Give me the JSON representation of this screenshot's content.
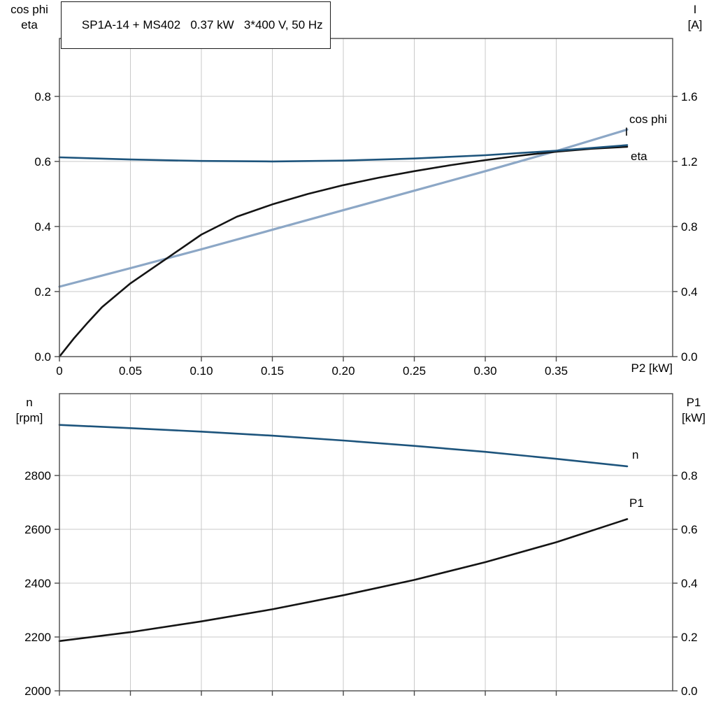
{
  "title_box": {
    "text": "SP1A-14 + MS402   0.37 kW   3*400 V, 50 Hz"
  },
  "colors": {
    "dark_blue": "#1d547c",
    "light_blue": "#8ca7c6",
    "black": "#141414",
    "grid": "#c9c9c9",
    "axis": "#4a4a4a"
  },
  "axis_corner_labels": {
    "top_chart_left": [
      "cos phi",
      "eta"
    ],
    "top_chart_right": [
      "I",
      "[A]"
    ],
    "bottom_chart_left": [
      "n",
      "[rpm]"
    ],
    "bottom_chart_right": [
      "P1",
      "[kW]"
    ]
  },
  "chart_data": [
    {
      "type": "line",
      "title": "SP1A-14 + MS402 0.37 kW 3*400 V, 50 Hz",
      "xlabel": "P2 [kW]",
      "ylabel_left": "cos phi / eta",
      "ylabel_right": "I [A]",
      "xlim": [
        0,
        0.432
      ],
      "x_ticks": [
        0,
        0.05,
        0.1,
        0.15,
        0.2,
        0.25,
        0.3,
        0.35
      ],
      "x_tick_labels": [
        "0",
        "0.05",
        "0.10",
        "0.15",
        "0.20",
        "0.25",
        "0.30",
        "0.35"
      ],
      "ylim_left": [
        0,
        0.978
      ],
      "y_ticks_left": [
        0,
        0.2,
        0.4,
        0.6,
        0.8
      ],
      "y_tick_labels_left": [
        "0.0",
        "0.2",
        "0.4",
        "0.6",
        "0.8"
      ],
      "ylim_right": [
        0,
        1.956
      ],
      "y_ticks_right": [
        0,
        0.4,
        0.8,
        1.2,
        1.6
      ],
      "y_tick_labels_right": [
        "0.0",
        "0.4",
        "0.8",
        "1.2",
        "1.6"
      ],
      "grid": true,
      "legend_position": "curve-end-labels",
      "series": [
        {
          "name": "cos phi",
          "axis": "left",
          "color_key": "light_blue",
          "x": [
            0,
            0.05,
            0.1,
            0.15,
            0.2,
            0.25,
            0.3,
            0.35,
            0.4
          ],
          "values": [
            0.215,
            0.272,
            0.33,
            0.39,
            0.45,
            0.51,
            0.57,
            0.632,
            0.698
          ]
        },
        {
          "name": "eta",
          "axis": "left",
          "color_key": "black",
          "x": [
            0,
            0.01,
            0.02,
            0.03,
            0.05,
            0.075,
            0.1,
            0.125,
            0.15,
            0.175,
            0.2,
            0.225,
            0.25,
            0.275,
            0.3,
            0.325,
            0.35,
            0.375,
            0.4
          ],
          "values": [
            0,
            0.055,
            0.105,
            0.152,
            0.225,
            0.3,
            0.375,
            0.43,
            0.468,
            0.5,
            0.527,
            0.55,
            0.57,
            0.588,
            0.604,
            0.618,
            0.63,
            0.639,
            0.645
          ]
        },
        {
          "name": "I",
          "axis": "right",
          "color_key": "dark_blue",
          "x": [
            0,
            0.05,
            0.1,
            0.15,
            0.2,
            0.25,
            0.3,
            0.35,
            0.4
          ],
          "values": [
            1.225,
            1.212,
            1.203,
            1.2,
            1.205,
            1.218,
            1.238,
            1.266,
            1.3
          ]
        }
      ]
    },
    {
      "type": "line",
      "title": "",
      "xlabel": "",
      "ylabel_left": "n [rpm]",
      "ylabel_right": "P1 [kW]",
      "xlim": [
        0,
        0.432
      ],
      "x_ticks": [
        0,
        0.05,
        0.1,
        0.15,
        0.2,
        0.25,
        0.3,
        0.35
      ],
      "x_tick_labels": [],
      "ylim_left": [
        2000,
        3104
      ],
      "y_ticks_left": [
        2000,
        2200,
        2400,
        2600,
        2800
      ],
      "y_tick_labels_left": [
        "2000",
        "2200",
        "2400",
        "2600",
        "2800"
      ],
      "ylim_right": [
        0,
        1.104
      ],
      "y_ticks_right": [
        0,
        0.2,
        0.4,
        0.6,
        0.8
      ],
      "y_tick_labels_right": [
        "0.0",
        "0.2",
        "0.4",
        "0.6",
        "0.8"
      ],
      "grid": true,
      "legend_position": "curve-end-labels",
      "series": [
        {
          "name": "n",
          "axis": "left",
          "color_key": "dark_blue",
          "x": [
            0,
            0.05,
            0.1,
            0.15,
            0.2,
            0.25,
            0.3,
            0.35,
            0.4
          ],
          "values": [
            2988,
            2976,
            2963,
            2948,
            2930,
            2910,
            2888,
            2862,
            2834
          ]
        },
        {
          "name": "P1",
          "axis": "right",
          "color_key": "black",
          "x": [
            0,
            0.05,
            0.1,
            0.15,
            0.2,
            0.25,
            0.3,
            0.35,
            0.4
          ],
          "values": [
            0.185,
            0.218,
            0.258,
            0.303,
            0.355,
            0.412,
            0.478,
            0.552,
            0.638
          ]
        }
      ]
    }
  ]
}
